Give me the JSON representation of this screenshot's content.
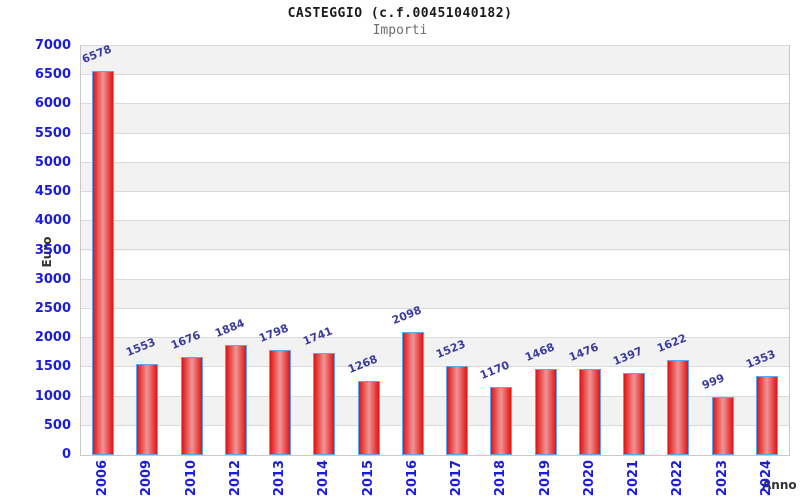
{
  "chart_data": {
    "type": "bar",
    "title": "CASTEGGIO (c.f.00451040182)",
    "subtitle": "Importi",
    "categories": [
      "2006",
      "2009",
      "2010",
      "2012",
      "2013",
      "2014",
      "2015",
      "2016",
      "2017",
      "2018",
      "2019",
      "2020",
      "2021",
      "2022",
      "2023",
      "2024"
    ],
    "values": [
      6578,
      1553,
      1676,
      1884,
      1798,
      1741,
      1268,
      2098,
      1523,
      1170,
      1468,
      1476,
      1397,
      1622,
      999,
      1353
    ],
    "xlabel": "Anno",
    "ylabel": "Euro",
    "ylim": [
      0,
      7000
    ],
    "ytick_step": 500,
    "grid": true,
    "legend": false,
    "bar_value_labels": true,
    "band_pattern": "gray stripe every other 500-unit interval starting at 500"
  },
  "colors": {
    "bar_edge": "#e01414",
    "bar_center": "#f09595",
    "bar_border": "#5aa6f8",
    "band": "#f2f2f3",
    "grid": "#dadada",
    "plot_border": "#c9c9c9",
    "tick_label": "#1c1cdc",
    "value_label": "#3c3c9c",
    "axis_label": "#333333",
    "title": "#1a1a1a",
    "subtitle": "#6e6e6e"
  }
}
